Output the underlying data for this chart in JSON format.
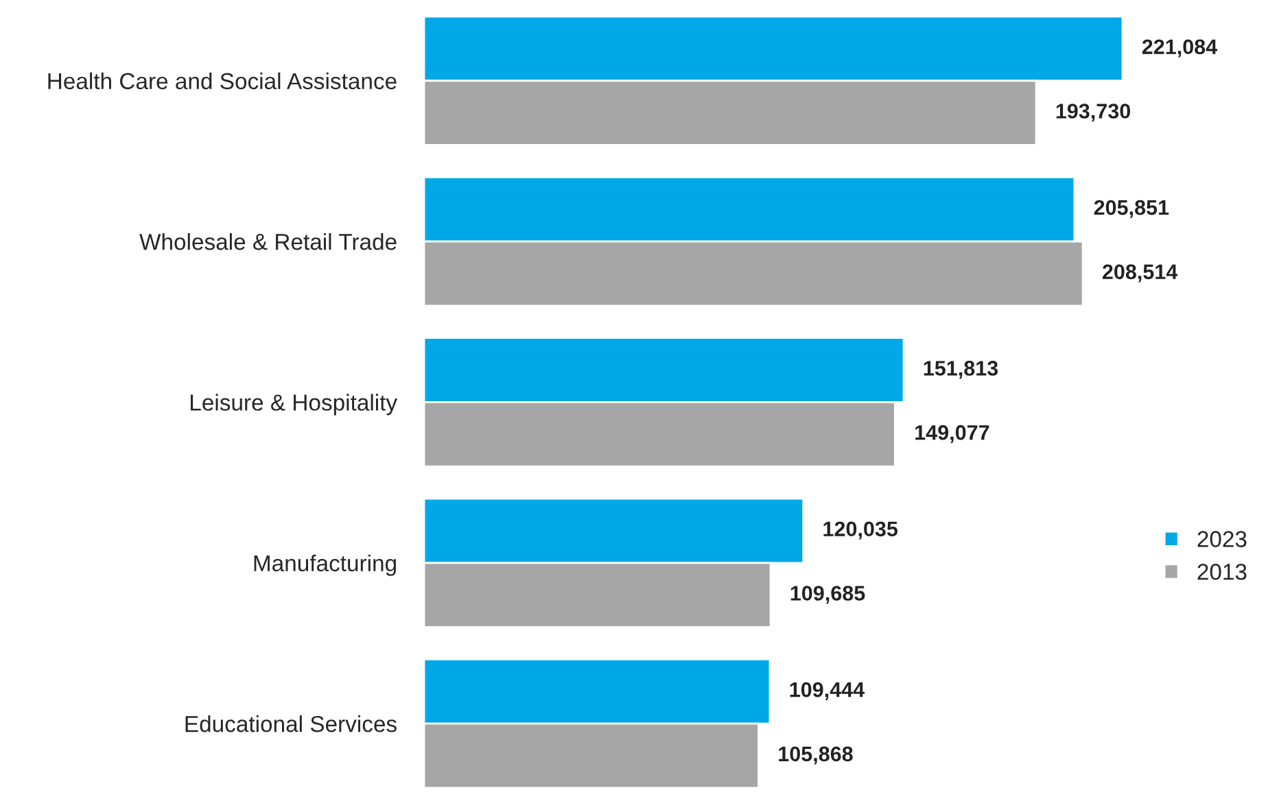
{
  "chart_data": {
    "type": "bar",
    "orientation": "horizontal",
    "categories": [
      "Health Care and Social Assistance",
      "Wholesale & Retail Trade",
      "Leisure & Hospitality",
      "Manufacturing",
      "Educational Services"
    ],
    "series": [
      {
        "name": "2023",
        "color": "#00a8e8",
        "values": [
          221084,
          205851,
          151813,
          120035,
          109444
        ],
        "value_labels": [
          "221,084",
          "205,851",
          "151,813",
          "120,035",
          "109,444"
        ]
      },
      {
        "name": "2013",
        "color": "#a6a6a6",
        "values": [
          193730,
          208514,
          149077,
          109685,
          105868
        ],
        "value_labels": [
          "193,730",
          "208,514",
          "149,077",
          "109,685",
          "105,868"
        ]
      }
    ],
    "legend": "right",
    "grid": false
  }
}
